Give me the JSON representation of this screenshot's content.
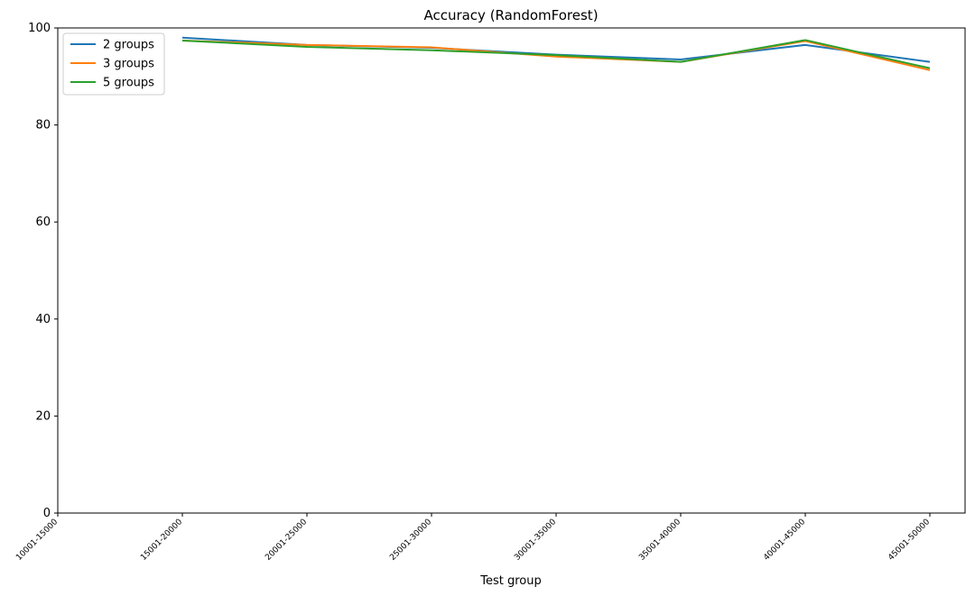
{
  "chart_data": {
    "type": "line",
    "title": "Accuracy (RandomForest)",
    "xlabel": "Test group",
    "ylabel": "",
    "categories": [
      "10001-15000",
      "15001-20000",
      "20001-25000",
      "25001-30000",
      "30001-35000",
      "35001-40000",
      "40001-45000",
      "45001-50000"
    ],
    "ylim": [
      0,
      100
    ],
    "yticks": [
      0,
      20,
      40,
      60,
      80,
      100
    ],
    "grid": false,
    "legend_position": "top-left",
    "series": [
      {
        "name": "2 groups",
        "color": "#1f77b4",
        "values": [
          null,
          98.0,
          96.5,
          95.9,
          94.5,
          93.5,
          96.5,
          93.0
        ]
      },
      {
        "name": "3 groups",
        "color": "#ff7f0e",
        "values": [
          null,
          97.4,
          96.5,
          96.0,
          94.1,
          93.0,
          97.3,
          91.3
        ]
      },
      {
        "name": "5 groups",
        "color": "#2ca02c",
        "values": [
          null,
          97.4,
          96.1,
          95.4,
          94.4,
          93.0,
          97.5,
          91.7
        ]
      }
    ]
  }
}
